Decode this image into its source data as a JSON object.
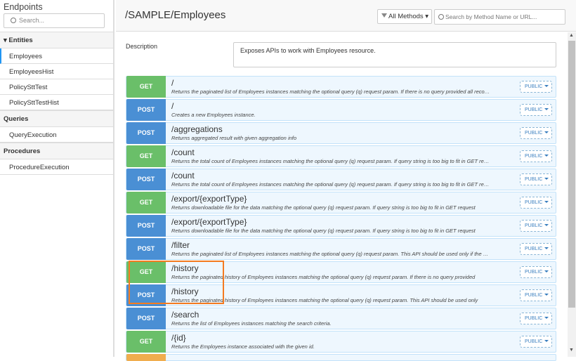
{
  "sidebar": {
    "title": "Endpoints",
    "search_placeholder": "Search...",
    "sections": [
      {
        "label": "▾ Entities",
        "items": [
          "Employees",
          "EmployeesHist",
          "PolicySttTest",
          "PolicySttTestHist"
        ]
      },
      {
        "label": "Queries",
        "items": [
          "QueryExecution"
        ]
      },
      {
        "label": "Procedures",
        "items": [
          "ProcedureExecution"
        ]
      }
    ],
    "active": "Employees"
  },
  "header": {
    "title": "/SAMPLE/Employees",
    "method_filter": "All Methods ▾",
    "search_placeholder": "Search by Method Name or URL..."
  },
  "description": {
    "label": "Description",
    "value": "Exposes APIs to work with Employees resource."
  },
  "colors": {
    "GET": "#6abf69",
    "POST": "#4a8fd4",
    "PUT": "#f0ad4e",
    "highlight": "#f47b20"
  },
  "endpoints": [
    {
      "method": "GET",
      "path": "/",
      "desc": "Returns the paginated list of Employees instances matching the optional query (q) request param. If there is no query provided all records are returned.",
      "access": "PUBLIC"
    },
    {
      "method": "POST",
      "path": "/",
      "desc": "Creates a new Employees instance.",
      "access": "PUBLIC"
    },
    {
      "method": "POST",
      "path": "/aggregations",
      "desc": "Returns aggregated result with given aggregation info",
      "access": "PUBLIC"
    },
    {
      "method": "GET",
      "path": "/count",
      "desc": "Returns the total count of Employees instances matching the optional query (q) request param. If query string is too big to fit in GET request",
      "access": "PUBLIC"
    },
    {
      "method": "POST",
      "path": "/count",
      "desc": "Returns the total count of Employees instances matching the optional query (q) request param. If query string is too big to fit in GET request",
      "access": "PUBLIC"
    },
    {
      "method": "GET",
      "path": "/export/{exportType}",
      "desc": "Returns downloadable file for the data matching the optional query (q) request param. If query string is too big to fit in GET request",
      "access": "PUBLIC"
    },
    {
      "method": "POST",
      "path": "/export/{exportType}",
      "desc": "Returns downloadable file for the data matching the optional query (q) request param. If query string is too big to fit in GET request",
      "access": "PUBLIC"
    },
    {
      "method": "POST",
      "path": "/filter",
      "desc": "Returns the paginated list of Employees instances matching the optional query (q) request param. This API should be used only if the query string is too big",
      "access": "PUBLIC"
    },
    {
      "method": "GET",
      "path": "/history",
      "desc": "Returns the paginated history of Employees instances matching the optional query (q) request param. If there is no query provided",
      "access": "PUBLIC"
    },
    {
      "method": "POST",
      "path": "/history",
      "desc": "Returns the paginated history of Employees instances matching the optional query (q) request param. This API should be used only",
      "access": "PUBLIC"
    },
    {
      "method": "POST",
      "path": "/search",
      "desc": "Returns the list of Employees instances matching the search criteria.",
      "access": "PUBLIC"
    },
    {
      "method": "GET",
      "path": "/{id}",
      "desc": "Returns the Employees instance associated with the given id.",
      "access": "PUBLIC"
    }
  ]
}
